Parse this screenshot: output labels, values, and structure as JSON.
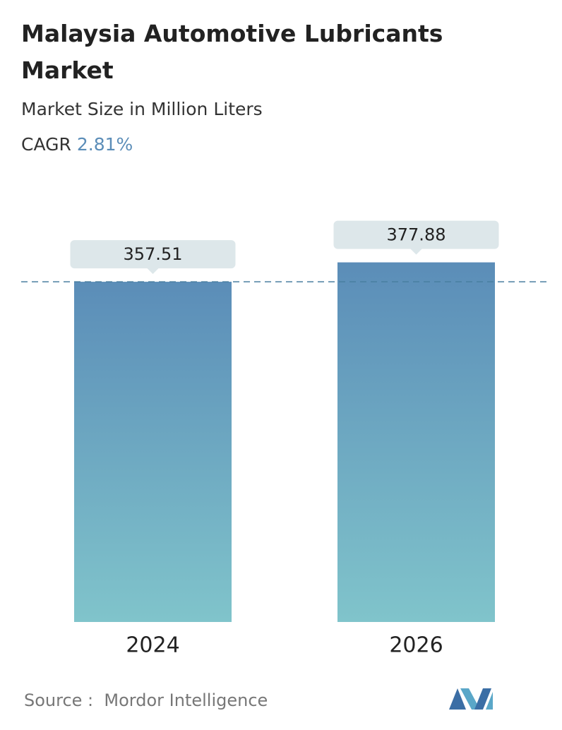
{
  "chart_data": {
    "type": "bar",
    "title": "Malaysia Automotive Lubricants Market",
    "subtitle": "Market Size in Million Liters",
    "cagr_label": "CAGR",
    "cagr": "2.81%",
    "categories": [
      "2024",
      "2026"
    ],
    "values": [
      357.51,
      377.88
    ],
    "source": "Source :  Mordor Intelligence"
  }
}
